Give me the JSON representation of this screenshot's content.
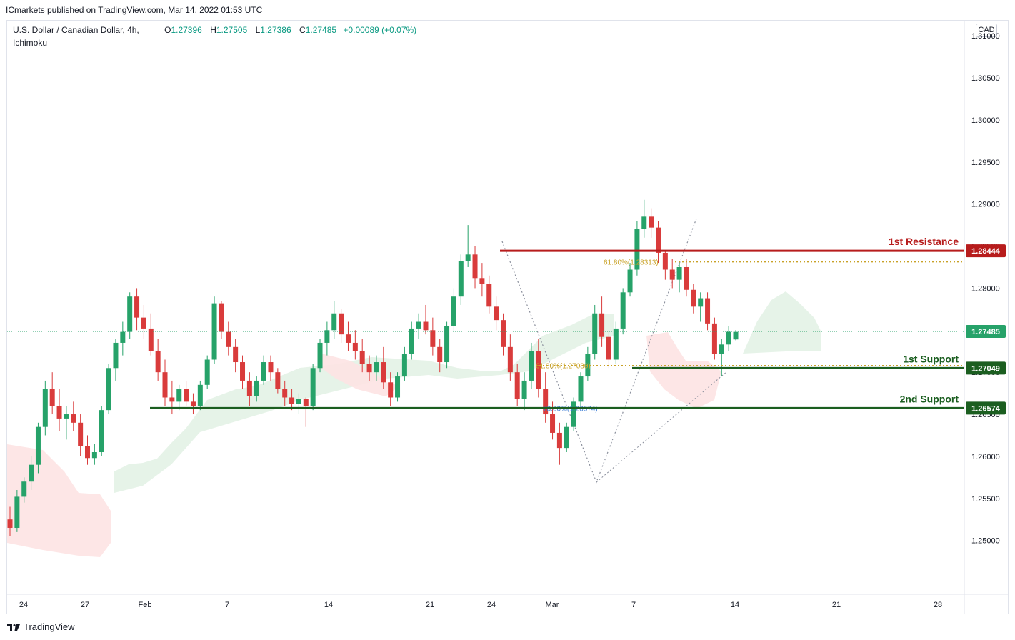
{
  "header": {
    "published": "ICmarkets published on TradingView.com, Mar 14, 2022 01:53 UTC",
    "symbol": "U.S. Dollar / Canadian Dollar, 4h,",
    "indicator": "Ichimoku",
    "ohlc": {
      "o_label": "O",
      "o": "1.27396",
      "h_label": "H",
      "h": "1.27505",
      "l_label": "L",
      "l": "1.27386",
      "c_label": "C",
      "c": "1.27485",
      "change": "+0.00089 (+0.07%)"
    },
    "currency": "CAD"
  },
  "footer": {
    "brand": "TradingView"
  },
  "colors": {
    "up": "#26a269",
    "down": "#d93b3b",
    "resistance": "#b71c1c",
    "support": "#1b5e20",
    "fib_gold": "#c9a227",
    "fib_blue": "#3a7bd5",
    "cloud_green": "#e3f2e6",
    "cloud_red": "#fde3e3"
  },
  "chart_data": {
    "type": "candlestick",
    "ylim": [
      1.245,
      1.315
    ],
    "y_ticks": [
      "1.31000",
      "1.30500",
      "1.30000",
      "1.29500",
      "1.29000",
      "1.28500",
      "1.28000",
      "1.27500",
      "1.27000",
      "1.26500",
      "1.26000",
      "1.25500",
      "1.25000"
    ],
    "x_ticks": [
      "24",
      "27",
      "Feb",
      "7",
      "14",
      "21",
      "24",
      "Mar",
      "7",
      "14",
      "21",
      "28"
    ],
    "last_price": "1.27485",
    "levels": [
      {
        "name": "1st Resistance",
        "value": 1.28444,
        "label": "1.28444",
        "kind": "resistance"
      },
      {
        "name": "1st Support",
        "value": 1.27049,
        "label": "1.27049",
        "kind": "support"
      },
      {
        "name": "2nd Support",
        "value": 1.26574,
        "label": "2nd Support",
        "price_label": "1.26574",
        "kind": "support"
      }
    ],
    "fib_labels": [
      {
        "text": "61.80%(1.28313)",
        "value": 1.28313,
        "color": "gold"
      },
      {
        "text": "61.80%(1.27080)",
        "value": 1.2708,
        "color": "gold"
      },
      {
        "text": "78.60%(1.26574)",
        "value": 1.26574,
        "color": "blue"
      }
    ],
    "candles_ohlc": [
      [
        1.2525,
        1.254,
        1.2505,
        1.2515
      ],
      [
        1.2515,
        1.256,
        1.251,
        1.2552
      ],
      [
        1.2552,
        1.2575,
        1.2545,
        1.257
      ],
      [
        1.257,
        1.26,
        1.256,
        1.259
      ],
      [
        1.259,
        1.264,
        1.258,
        1.2635
      ],
      [
        1.2635,
        1.269,
        1.2625,
        1.268
      ],
      [
        1.268,
        1.27,
        1.265,
        1.266
      ],
      [
        1.266,
        1.268,
        1.263,
        1.2645
      ],
      [
        1.2645,
        1.266,
        1.262,
        1.265
      ],
      [
        1.265,
        1.2665,
        1.263,
        1.264
      ],
      [
        1.264,
        1.265,
        1.26,
        1.2612
      ],
      [
        1.2612,
        1.2625,
        1.259,
        1.2598
      ],
      [
        1.2598,
        1.2615,
        1.259,
        1.2605
      ],
      [
        1.2605,
        1.266,
        1.26,
        1.2655
      ],
      [
        1.2655,
        1.271,
        1.265,
        1.2705
      ],
      [
        1.2705,
        1.274,
        1.269,
        1.2735
      ],
      [
        1.2735,
        1.276,
        1.272,
        1.2748
      ],
      [
        1.2748,
        1.2795,
        1.274,
        1.279
      ],
      [
        1.279,
        1.28,
        1.275,
        1.2765
      ],
      [
        1.2765,
        1.278,
        1.274,
        1.2752
      ],
      [
        1.2752,
        1.277,
        1.272,
        1.2725
      ],
      [
        1.2725,
        1.274,
        1.269,
        1.27
      ],
      [
        1.27,
        1.2715,
        1.266,
        1.267
      ],
      [
        1.267,
        1.269,
        1.265,
        1.2665
      ],
      [
        1.2665,
        1.2685,
        1.2655,
        1.268
      ],
      [
        1.268,
        1.269,
        1.266,
        1.2665
      ],
      [
        1.2665,
        1.2675,
        1.265,
        1.266
      ],
      [
        1.266,
        1.269,
        1.2655,
        1.2685
      ],
      [
        1.2685,
        1.272,
        1.268,
        1.2715
      ],
      [
        1.2715,
        1.279,
        1.271,
        1.2782
      ],
      [
        1.2782,
        1.2785,
        1.274,
        1.2748
      ],
      [
        1.2748,
        1.276,
        1.272,
        1.273
      ],
      [
        1.273,
        1.274,
        1.27,
        1.2712
      ],
      [
        1.2712,
        1.272,
        1.268,
        1.269
      ],
      [
        1.269,
        1.27,
        1.266,
        1.2672
      ],
      [
        1.2672,
        1.2695,
        1.2665,
        1.269
      ],
      [
        1.269,
        1.272,
        1.2685,
        1.2712
      ],
      [
        1.2712,
        1.272,
        1.269,
        1.27
      ],
      [
        1.27,
        1.2705,
        1.2675,
        1.268
      ],
      [
        1.268,
        1.269,
        1.266,
        1.267
      ],
      [
        1.267,
        1.268,
        1.2655,
        1.2662
      ],
      [
        1.2662,
        1.2675,
        1.265,
        1.2668
      ],
      [
        1.2668,
        1.267,
        1.2635,
        1.266
      ],
      [
        1.266,
        1.271,
        1.2655,
        1.2705
      ],
      [
        1.2705,
        1.274,
        1.27,
        1.2735
      ],
      [
        1.2735,
        1.276,
        1.272,
        1.275
      ],
      [
        1.275,
        1.2785,
        1.274,
        1.277
      ],
      [
        1.277,
        1.2775,
        1.2735,
        1.2745
      ],
      [
        1.2745,
        1.276,
        1.2725,
        1.2735
      ],
      [
        1.2735,
        1.275,
        1.2715,
        1.2725
      ],
      [
        1.2725,
        1.274,
        1.27,
        1.271
      ],
      [
        1.271,
        1.272,
        1.269,
        1.27
      ],
      [
        1.27,
        1.272,
        1.269,
        1.2712
      ],
      [
        1.2712,
        1.273,
        1.268,
        1.2688
      ],
      [
        1.2688,
        1.27,
        1.266,
        1.267
      ],
      [
        1.267,
        1.27,
        1.2665,
        1.2695
      ],
      [
        1.2695,
        1.273,
        1.269,
        1.2722
      ],
      [
        1.2722,
        1.276,
        1.2715,
        1.2752
      ],
      [
        1.2752,
        1.277,
        1.274,
        1.276
      ],
      [
        1.276,
        1.278,
        1.2745,
        1.275
      ],
      [
        1.275,
        1.2765,
        1.272,
        1.273
      ],
      [
        1.273,
        1.274,
        1.27,
        1.2712
      ],
      [
        1.2712,
        1.276,
        1.2705,
        1.2755
      ],
      [
        1.2755,
        1.28,
        1.2748,
        1.279
      ],
      [
        1.279,
        1.284,
        1.278,
        1.2832
      ],
      [
        1.2832,
        1.2875,
        1.2825,
        1.284
      ],
      [
        1.284,
        1.285,
        1.28,
        1.2812
      ],
      [
        1.2812,
        1.283,
        1.279,
        1.2805
      ],
      [
        1.2805,
        1.2815,
        1.277,
        1.2778
      ],
      [
        1.2778,
        1.279,
        1.275,
        1.2762
      ],
      [
        1.2762,
        1.277,
        1.272,
        1.273
      ],
      [
        1.273,
        1.2745,
        1.269,
        1.27
      ],
      [
        1.27,
        1.271,
        1.266,
        1.2668
      ],
      [
        1.2668,
        1.27,
        1.2655,
        1.269
      ],
      [
        1.269,
        1.2735,
        1.268,
        1.2725
      ],
      [
        1.2725,
        1.274,
        1.267,
        1.268
      ],
      [
        1.268,
        1.27,
        1.264,
        1.265
      ],
      [
        1.265,
        1.2665,
        1.262,
        1.2628
      ],
      [
        1.2628,
        1.264,
        1.259,
        1.261
      ],
      [
        1.261,
        1.264,
        1.2605,
        1.2635
      ],
      [
        1.2635,
        1.267,
        1.263,
        1.2665
      ],
      [
        1.2665,
        1.27,
        1.266,
        1.2695
      ],
      [
        1.2695,
        1.273,
        1.269,
        1.2722
      ],
      [
        1.2722,
        1.278,
        1.2715,
        1.277
      ],
      [
        1.277,
        1.279,
        1.273,
        1.2742
      ],
      [
        1.2742,
        1.275,
        1.2705,
        1.2715
      ],
      [
        1.2715,
        1.276,
        1.271,
        1.2752
      ],
      [
        1.2752,
        1.28,
        1.2745,
        1.2795
      ],
      [
        1.2795,
        1.283,
        1.279,
        1.2822
      ],
      [
        1.2822,
        1.288,
        1.2815,
        1.287
      ],
      [
        1.287,
        1.2905,
        1.286,
        1.2885
      ],
      [
        1.2885,
        1.2895,
        1.286,
        1.2872
      ],
      [
        1.2872,
        1.288,
        1.283,
        1.2842
      ],
      [
        1.2842,
        1.2845,
        1.281,
        1.2822
      ],
      [
        1.2822,
        1.2835,
        1.28,
        1.281
      ],
      [
        1.281,
        1.283,
        1.2795,
        1.2825
      ],
      [
        1.2825,
        1.2835,
        1.279,
        1.2798
      ],
      [
        1.2798,
        1.2805,
        1.277,
        1.2778
      ],
      [
        1.2778,
        1.2795,
        1.276,
        1.2788
      ],
      [
        1.2788,
        1.2795,
        1.275,
        1.2758
      ],
      [
        1.2758,
        1.2765,
        1.2715,
        1.2722
      ],
      [
        1.2722,
        1.274,
        1.2695,
        1.2733
      ],
      [
        1.2733,
        1.2755,
        1.2725,
        1.2748
      ],
      [
        1.2739,
        1.275,
        1.2738,
        1.2748
      ]
    ]
  }
}
